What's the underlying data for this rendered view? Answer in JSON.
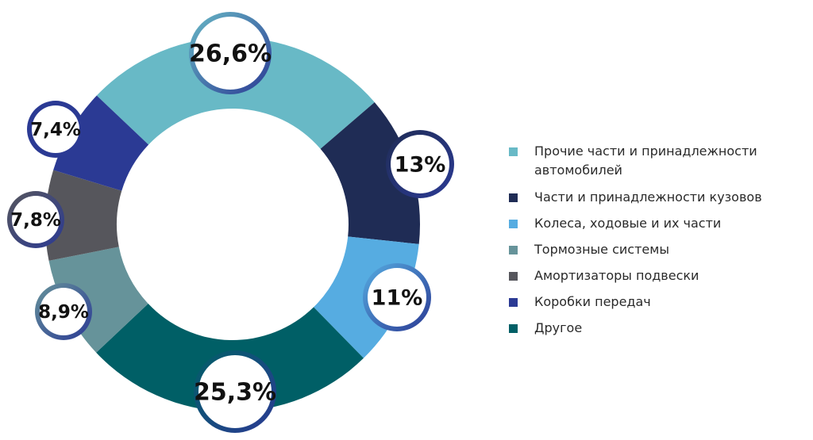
{
  "chart_data": {
    "type": "pie",
    "donut": true,
    "categories": [
      "Прочие части и принадлежности автомобилей",
      "Части и принадлежности кузовов",
      "Колеса, ходовые и их части",
      "Тормозные системы",
      "Амортизаторы подвески",
      "Коробки передач",
      "Другое"
    ],
    "values": [
      26.6,
      13,
      11,
      8.9,
      7.8,
      7.4,
      25.3
    ],
    "data_labels": [
      "26,6%",
      "13%",
      "11%",
      "8,9%",
      "7,8%",
      "7,4%",
      "25,3%"
    ],
    "display_order": [
      0,
      1,
      2,
      6,
      3,
      4,
      5
    ],
    "colors": [
      "#68b9c6",
      "#1f2c55",
      "#56ace1",
      "#66939a",
      "#56565c",
      "#2b3a94",
      "#005f66"
    ],
    "legend_position": "right"
  }
}
